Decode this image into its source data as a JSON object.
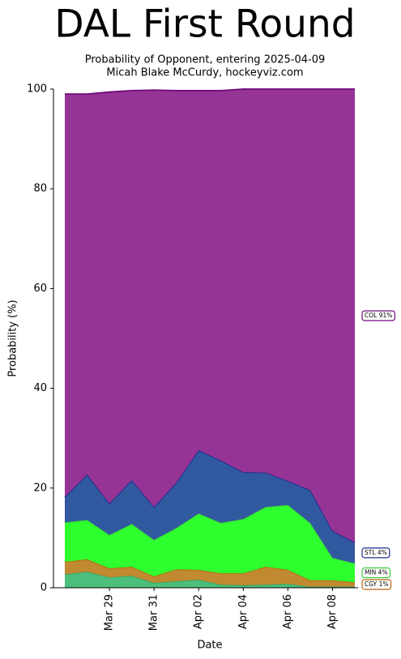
{
  "chart_data": {
    "type": "area",
    "stacked": true,
    "title": "DAL First Round",
    "subtitle": [
      "Probability of Opponent, entering 2025-04-09",
      "Micah Blake McCurdy, hockeyviz.com"
    ],
    "xlabel": "Date",
    "ylabel": "Probability (%)",
    "categories": [
      null,
      null,
      "Mar 29",
      null,
      "Mar 31",
      null,
      "Apr 02",
      null,
      "Apr 04",
      null,
      "Apr 06",
      null,
      "Apr 08",
      null
    ],
    "ylim": [
      0,
      100
    ],
    "yticks": [
      0,
      20,
      40,
      60,
      80,
      100
    ],
    "series": [
      {
        "color": "#4dbf7d",
        "edge": "#2fa866",
        "values": [
          2.7,
          3.2,
          2.1,
          2.4,
          1.0,
          1.3,
          1.6,
          0.6,
          0.5,
          0.6,
          0.8,
          0.2,
          0.2,
          0.2
        ]
      },
      {
        "name": "CGY  1%",
        "color": "#c18a30",
        "edge": "#b8660e",
        "values": [
          2.5,
          2.5,
          1.8,
          1.8,
          1.3,
          2.4,
          2.0,
          2.3,
          2.4,
          3.6,
          2.8,
          1.3,
          1.3,
          0.9
        ]
      },
      {
        "name": "MIN  4%",
        "color": "#2eff2e",
        "edge": "#3ccc3c",
        "values": [
          7.9,
          7.9,
          6.7,
          8.6,
          7.3,
          8.3,
          11.3,
          10.1,
          10.9,
          12.0,
          13.0,
          11.5,
          4.5,
          3.8
        ]
      },
      {
        "name": "STL  4%",
        "color": "#3159a0",
        "edge": "#1a2e8c",
        "values": [
          5.1,
          9.1,
          6.3,
          8.8,
          6.6,
          9.1,
          12.7,
          12.5,
          9.4,
          6.9,
          4.8,
          6.6,
          5.4,
          4.2
        ]
      },
      {
        "name": "COL 91%",
        "color": "#963496",
        "edge": "#6e0a7a",
        "values": [
          80.8,
          76.3,
          82.5,
          78.1,
          83.6,
          78.6,
          72.1,
          74.2,
          76.8,
          76.9,
          78.6,
          80.4,
          88.6,
          90.9
        ]
      }
    ]
  }
}
